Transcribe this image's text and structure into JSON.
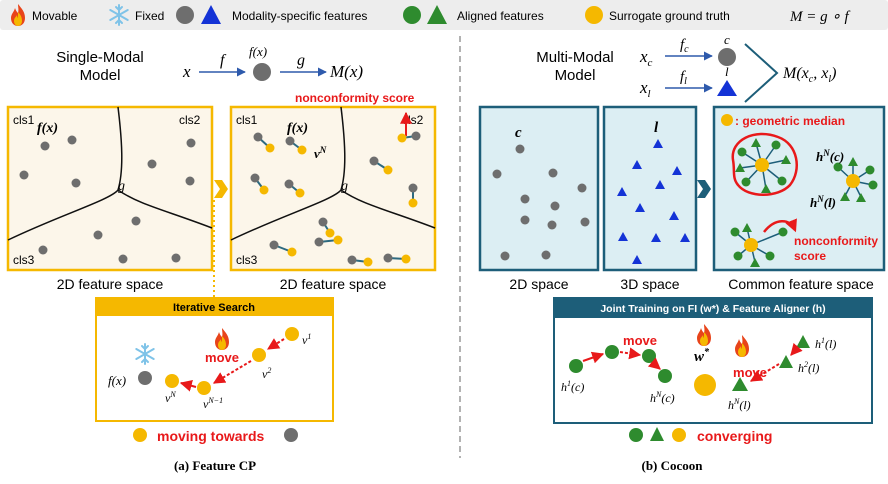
{
  "legend": {
    "movable": "Movable",
    "fixed": "Fixed",
    "modality_features": "Modality-specific features",
    "aligned_features": "Aligned features",
    "surrogate": "Surrogate ground truth",
    "formula": "M = g ∘ f"
  },
  "left": {
    "model_title_1": "Single-Modal",
    "model_title_2": "Model",
    "x": "x",
    "f": "f",
    "fx": "f(x)",
    "g": "g",
    "mx": "M(x)",
    "nonconformity": "nonconformity score",
    "cls1": "cls1",
    "cls2": "cls2",
    "cls3": "cls3",
    "fx_bold": "f(x)",
    "vN_bold": "v",
    "vN_sup": "N",
    "g_label": "g",
    "space_left": "2D feature space",
    "space_right": "2D feature space",
    "search_title": "Iterative Search",
    "move": "move",
    "fx_small": "f(x)",
    "v1": "v",
    "v1_sup": "1",
    "v2": "v",
    "v2_sup": "2",
    "vN": "v",
    "vN_sup_small": "N",
    "vN1": "v",
    "vN1_sup": "N−1",
    "moving_towards": "moving towards",
    "caption": "(a) Feature CP"
  },
  "right": {
    "model_title_1": "Multi-Modal",
    "model_title_2": "Model",
    "xc": "x",
    "xc_sub": "c",
    "xl": "x",
    "xl_sub": "l",
    "fc": "f",
    "fc_sub": "c",
    "fl": "f",
    "fl_sub": "l",
    "c": "c",
    "l": "l",
    "mxcxl": "M(x",
    "geometric_median": ": geometric median",
    "hNc": "h",
    "hNc_sup": "N",
    "hNc_arg": "(c)",
    "hNl": "h",
    "hNl_sup": "N",
    "hNl_arg": "(l)",
    "nonconformity_1": "nonconformity",
    "nonconformity_2": "score",
    "space_2d": "2D space",
    "space_3d": "3D space",
    "space_common": "Common feature space",
    "joint_title": "Joint Training on FI (w*) & Feature Aligner (h)",
    "move_left": "move",
    "move_right": "move",
    "w_star": "w",
    "h1c": "h",
    "h1c_sup": "1",
    "h1c_arg": "(c)",
    "hNc2": "h",
    "hNc2_sup": "N",
    "hNc2_arg": "(c)",
    "h1l": "h",
    "h1l_sup": "1",
    "h1l_arg": "(l)",
    "h2l": "h",
    "h2l_sup": "2",
    "h2l_arg": "(l)",
    "hNl2": "h",
    "hNl2_sup": "N",
    "hNl2_arg": "(l)",
    "converging": "converging",
    "caption": "(b) Cocoon"
  },
  "colors": {
    "orange": "#F5B800",
    "gray": "#6E6E6E",
    "blue": "#1433D6",
    "green": "#2E8B2E",
    "red": "#E8191A",
    "teal_border": "#1D5E79",
    "teal_fill": "#DCEEF3",
    "cream": "#FCF6EA"
  }
}
